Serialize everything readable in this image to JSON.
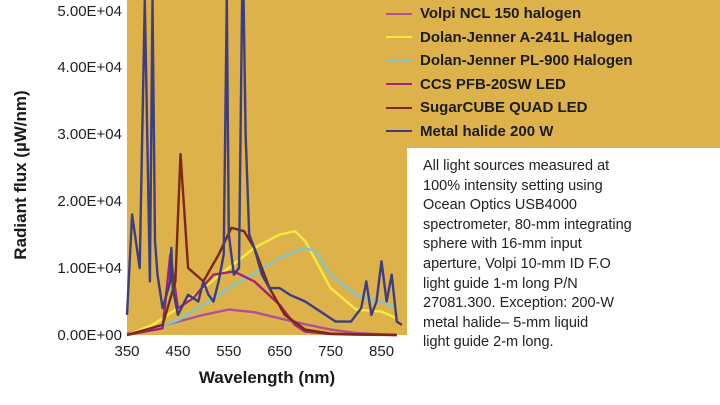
{
  "chart_data": {
    "type": "line",
    "xlabel": "Wavelength (nm)",
    "ylabel": "Radiant flux (µW/nm)",
    "xlim": [
      350,
      900
    ],
    "ylim": [
      0,
      50000
    ],
    "x_ticks": [
      "350",
      "450",
      "550",
      "650",
      "750",
      "850"
    ],
    "y_ticks": [
      "0.00E+00",
      "1.00E+04",
      "2.00E+04",
      "3.00E+04",
      "4.00E+04",
      "5.00E+04"
    ],
    "plot_background": "#ddb24a",
    "series": [
      {
        "name": "Volpi NCL 150 halogen",
        "color": "#b0509a",
        "x": [
          350,
          400,
          450,
          500,
          550,
          600,
          650,
          700,
          750,
          800,
          850,
          880
        ],
        "values": [
          200,
          1000,
          2000,
          3000,
          3800,
          3400,
          2500,
          1600,
          800,
          300,
          100,
          0
        ]
      },
      {
        "name": "Dolan-Jenner A-241L Halogen",
        "color": "#f5ec3a",
        "x": [
          350,
          400,
          450,
          500,
          550,
          600,
          650,
          680,
          700,
          750,
          800,
          850,
          880
        ],
        "values": [
          0,
          1500,
          4000,
          7000,
          10000,
          13000,
          15000,
          15500,
          14000,
          7000,
          3800,
          3500,
          2500
        ]
      },
      {
        "name": "Dolan-Jenner PL-900 Halogen",
        "color": "#7fc6cf",
        "x": [
          350,
          400,
          450,
          500,
          550,
          600,
          650,
          700,
          720,
          750,
          800,
          850,
          880
        ],
        "values": [
          0,
          800,
          2200,
          4500,
          7000,
          9200,
          11500,
          13000,
          12500,
          9000,
          6000,
          5000,
          4000
        ]
      },
      {
        "name": "CCS PFB-20SW LED",
        "color": "#a3227a",
        "x": [
          350,
          420,
          435,
          450,
          480,
          520,
          560,
          600,
          650,
          680,
          700,
          750,
          800,
          880
        ],
        "values": [
          0,
          1000,
          12000,
          4000,
          5500,
          9000,
          9500,
          8000,
          4500,
          1500,
          500,
          150,
          50,
          0
        ]
      },
      {
        "name": "SugarCUBE QUAD LED",
        "color": "#7a2a12",
        "x": [
          350,
          420,
          445,
          455,
          470,
          500,
          530,
          555,
          580,
          600,
          630,
          660,
          700,
          750,
          880
        ],
        "values": [
          0,
          1500,
          8000,
          27000,
          10000,
          8000,
          12000,
          16000,
          15500,
          13000,
          7000,
          3000,
          800,
          200,
          0
        ]
      },
      {
        "name": "Metal halide 200 W",
        "color": "#3d3e82",
        "x": [
          350,
          360,
          375,
          385,
          395,
          400,
          405,
          410,
          420,
          435,
          437,
          440,
          450,
          470,
          490,
          500,
          510,
          520,
          530,
          540,
          546,
          550,
          560,
          570,
          576,
          579,
          583,
          590,
          600,
          615,
          630,
          650,
          670,
          700,
          720,
          760,
          790,
          810,
          820,
          830,
          840,
          850,
          860,
          870,
          880,
          890
        ],
        "values": [
          3000,
          18000,
          10000,
          50000,
          8000,
          50000,
          14000,
          9000,
          4000,
          8000,
          13000,
          7000,
          3000,
          6000,
          5000,
          8000,
          6000,
          5000,
          8000,
          12000,
          50000,
          15000,
          9000,
          10000,
          50000,
          50000,
          30000,
          15000,
          13000,
          9000,
          7000,
          7000,
          6000,
          5000,
          4000,
          2000,
          2000,
          4000,
          8000,
          3000,
          5000,
          11000,
          5000,
          9000,
          2000,
          1500
        ]
      }
    ],
    "annotation": [
      "All light sources measured at",
      "100% intensity setting using",
      "Ocean Optics USB4000",
      "spectrometer, 80-mm integrating",
      "sphere with 16-mm input",
      "aperture, Volpi 10-mm ID F.O",
      "light guide 1-m long P/N",
      "27081.300. Exception: 200-W",
      "metal halide– 5-mm liquid",
      "light guide 2-m long."
    ]
  }
}
